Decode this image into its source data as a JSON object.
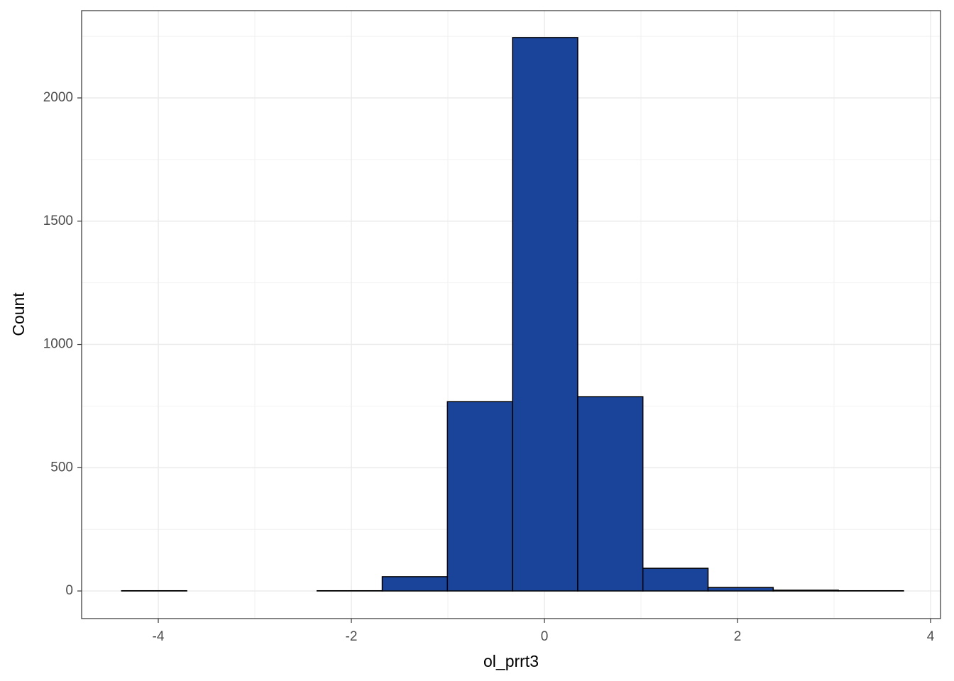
{
  "chart_data": {
    "type": "histogram",
    "x_label": "ol_prrt3",
    "y_label": "Count",
    "bins": [
      -4.38,
      -3.705,
      -3.03,
      -2.355,
      -1.68,
      -1.005,
      -0.33,
      0.345,
      1.02,
      1.695,
      2.37,
      3.045,
      3.72
    ],
    "values": [
      1,
      0,
      0,
      1,
      58,
      768,
      2245,
      788,
      92,
      14,
      3,
      1
    ],
    "color": "#1a449a",
    "edge_color": "#000000",
    "xlim": [
      -4.794,
      4.103
    ],
    "xticks": [
      -4,
      -2,
      0,
      2,
      4
    ],
    "ylim": [
      -112,
      2354
    ],
    "yticks": [
      0,
      500,
      1000,
      1500,
      2000
    ],
    "grid": true
  }
}
